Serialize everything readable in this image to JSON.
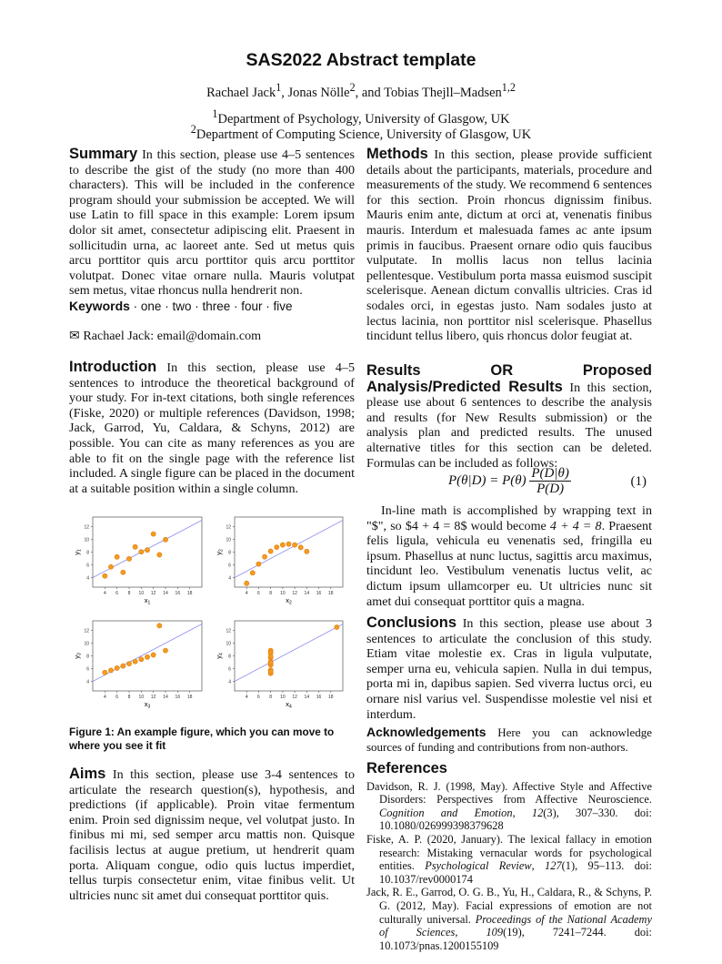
{
  "header": {
    "title": "SAS2022 Abstract template",
    "authors": [
      {
        "name": "Rachael Jack",
        "sup": "1"
      },
      {
        "name": "Jonas Nölle",
        "sup": "2"
      },
      {
        "name": "Tobias Thejll–Madsen",
        "sup": "1,2"
      }
    ],
    "authors_sep1": ", ",
    "authors_sep2": ", and ",
    "affiliations": [
      {
        "sup": "1",
        "text": "Department of Psychology, University of Glasgow, UK"
      },
      {
        "sup": "2",
        "text": "Department of Computing Science, University of Glasgow, UK"
      }
    ]
  },
  "summary": {
    "heading": "Summary",
    "text": " In this section, please use 4–5 sentences to describe the gist of the study (no more than 400 characters). This will be included in the conference program should your submission be accepted. We will use Latin to fill space in this example: Lorem ipsum dolor sit amet, consectetur adipiscing elit. Praesent in sollicitudin urna, ac laoreet ante. Sed ut metus quis arcu porttitor quis arcu porttitor quis arcu porttitor volutpat. Donec vitae ornare nulla. Mauris volutpat sem metus, vitae rhoncus nulla hendrerit non.",
    "keywords_label": "Keywords",
    "keywords": " · one · two · three · four · five",
    "email_icon": "envelope-icon",
    "email": "Rachael Jack: email@domain.com"
  },
  "introduction": {
    "heading": "Introduction",
    "text": " In this section, please use 4–5 sentences to introduce the theoretical background of your study. For in-text citations, both single references (Fiske, 2020) or multiple references (Davidson, 1998; Jack, Garrod, Yu, Caldara, & Schyns, 2012) are possible. You can cite as many references as you are able to fit on the single page with the reference list included. A single figure can be placed in the document at a suitable position within a single column."
  },
  "figure": {
    "caption": "Figure 1: An example figure, which you can move to where you see it fit"
  },
  "chart_data": [
    {
      "type": "scatter",
      "xlabel": "x1",
      "ylabel": "y1",
      "xlim": [
        2,
        20
      ],
      "ylim": [
        2.5,
        13.5
      ],
      "xticks": [
        4,
        6,
        8,
        10,
        12,
        14,
        16,
        18
      ],
      "yticks": [
        4,
        6,
        8,
        10,
        12
      ],
      "x": [
        10,
        8,
        13,
        9,
        11,
        14,
        6,
        4,
        12,
        7,
        5
      ],
      "y": [
        8.04,
        6.95,
        7.58,
        8.81,
        8.33,
        9.96,
        7.24,
        4.26,
        10.84,
        4.82,
        5.68
      ],
      "fit": {
        "intercept": 3,
        "slope": 0.5
      },
      "point_color": "#f39c1f",
      "line_color": "#8f8ff0"
    },
    {
      "type": "scatter",
      "xlabel": "x2",
      "ylabel": "y2",
      "xlim": [
        2,
        20
      ],
      "ylim": [
        2.5,
        13.5
      ],
      "xticks": [
        4,
        6,
        8,
        10,
        12,
        14,
        16,
        18
      ],
      "yticks": [
        4,
        6,
        8,
        10,
        12
      ],
      "x": [
        10,
        8,
        13,
        9,
        11,
        14,
        6,
        4,
        12,
        7,
        5
      ],
      "y": [
        9.14,
        8.14,
        8.74,
        8.77,
        9.26,
        8.1,
        6.13,
        3.1,
        9.13,
        7.26,
        4.74
      ],
      "fit": {
        "intercept": 3,
        "slope": 0.5
      },
      "point_color": "#f39c1f",
      "line_color": "#8f8ff0"
    },
    {
      "type": "scatter",
      "xlabel": "x3",
      "ylabel": "y3",
      "xlim": [
        2,
        20
      ],
      "ylim": [
        2.5,
        13.5
      ],
      "xticks": [
        4,
        6,
        8,
        10,
        12,
        14,
        16,
        18
      ],
      "yticks": [
        4,
        6,
        8,
        10,
        12
      ],
      "x": [
        10,
        8,
        13,
        9,
        11,
        14,
        6,
        4,
        12,
        7,
        5
      ],
      "y": [
        7.46,
        6.77,
        12.74,
        7.11,
        7.81,
        8.84,
        6.08,
        5.39,
        8.15,
        6.42,
        5.73
      ],
      "fit": {
        "intercept": 3,
        "slope": 0.5
      },
      "point_color": "#f39c1f",
      "line_color": "#8f8ff0"
    },
    {
      "type": "scatter",
      "xlabel": "x4",
      "ylabel": "y4",
      "xlim": [
        2,
        20
      ],
      "ylim": [
        2.5,
        13.5
      ],
      "xticks": [
        4,
        6,
        8,
        10,
        12,
        14,
        16,
        18
      ],
      "yticks": [
        4,
        6,
        8,
        10,
        12
      ],
      "x": [
        8,
        8,
        8,
        8,
        8,
        8,
        8,
        19,
        8,
        8,
        8
      ],
      "y": [
        6.58,
        5.76,
        7.71,
        8.84,
        8.47,
        7.04,
        5.25,
        12.5,
        5.56,
        7.91,
        6.89
      ],
      "fit": {
        "intercept": 3,
        "slope": 0.5
      },
      "point_color": "#f39c1f",
      "line_color": "#8f8ff0"
    }
  ],
  "aims": {
    "heading": "Aims",
    "text": " In this section, please use 3-4 sentences to articulate the research question(s), hypothesis, and predictions (if applicable). Proin vitae fermentum enim. Proin sed dignissim neque, vel volutpat justo. In finibus mi mi, sed semper arcu mattis non. Quisque facilisis lectus at augue pretium, ut hendrerit quam porta. Aliquam congue, odio quis luctus imperdiet, tellus turpis consectetur enim, vitae finibus velit. Ut ultricies nunc sit amet dui consequat porttitor quis."
  },
  "methods": {
    "heading": "Methods",
    "text": " In this section, please provide sufficient details about the participants, materials, procedure and measurements of the study. We recommend 6 sentences for this section. Proin rhoncus dignissim finibus. Mauris enim ante, dictum at orci at, venenatis finibus mauris. Interdum et malesuada fames ac ante ipsum primis in faucibus. Praesent ornare odio quis faucibus vulputate. In mollis lacus non tellus lacinia pellentesque. Vestibulum porta massa euismod suscipit scelerisque. Aenean dictum convallis ultricies. Cras id sodales orci, in egestas justo. Nam sodales justo at lectus lacinia, non porttitor nisl scelerisque. Phasellus tincidunt tellus libero, quis rhoncus dolor feugiat at."
  },
  "results": {
    "heading": "Results OR Proposed Analysis/Predicted Results",
    "text": " In this section, please use about 6 sentences to describe the analysis and results (for New Results submission) or the analysis plan and predicted results. The unused alternative titles for this section can be deleted. Formulas can be included as follows:",
    "equation": {
      "lhs": "P(θ|D) = P(θ)",
      "num": "P(D|θ)",
      "den": "P(D)",
      "number": "(1)"
    },
    "inline_before": "In-line math is accomplished by wrapping text in \"$\", so $4 + 4 = 8$ would become ",
    "inline_math": "4 + 4 = 8",
    "inline_after": ". Praesent felis ligula, vehicula eu venenatis sed, fringilla eu ipsum. Phasellus at nunc luctus, sagittis arcu maximus, tincidunt leo. Vestibulum venenatis luctus velit, ac dictum ipsum ullamcorper eu. Ut ultricies nunc sit amet dui consequat porttitor quis a magna."
  },
  "conclusions": {
    "heading": "Conclusions",
    "text": " In this section, please use about 3 sentences to articulate the conclusion of this study. Etiam vitae molestie ex. Cras in ligula vulputate, semper urna eu, vehicula sapien. Nulla in dui tempus, porta mi in, dapibus sapien. Sed viverra luctus orci, eu ornare nisl varius vel. Suspendisse molestie vel nisi et interdum."
  },
  "acknowledgements": {
    "heading": "Acknowledgements",
    "text": " Here you can acknowledge sources of funding and contributions from non-authors."
  },
  "references": {
    "heading": "References",
    "items": [
      {
        "pre": "Davidson, R. J. (1998, May). Affective Style and Affective Disorders: Perspectives from Affective Neuroscience. ",
        "journal": "Cognition and Emotion",
        "mid": ", ",
        "vol": "12",
        "post": "(3), 307–330. doi: 10.1080/026999398379628"
      },
      {
        "pre": "Fiske, A. P. (2020, January). The lexical fallacy in emotion research: Mistaking vernacular words for psychological entities. ",
        "journal": "Psychological Review",
        "mid": ", ",
        "vol": "127",
        "post": "(1), 95–113. doi: 10.1037/rev0000174"
      },
      {
        "pre": "Jack, R. E., Garrod, O. G. B., Yu, H., Caldara, R., & Schyns, P. G. (2012, May). Facial expressions of emotion are not culturally universal. ",
        "journal": "Proceedings of the National Academy of Sciences",
        "mid": ", ",
        "vol": "109",
        "post": "(19), 7241–7244. doi: 10.1073/pnas.1200155109"
      }
    ]
  }
}
